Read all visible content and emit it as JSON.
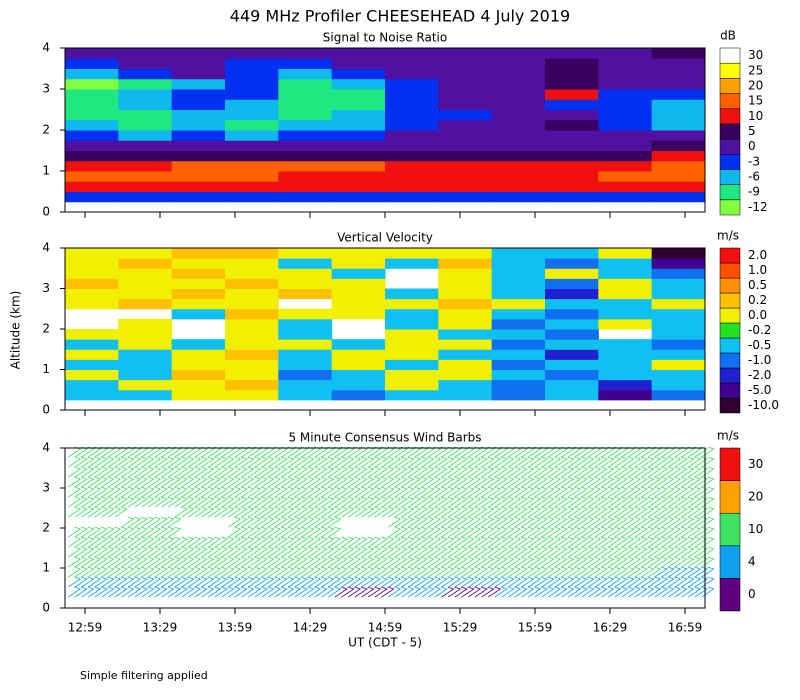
{
  "title": "449 MHz Profiler CHEESEHEAD  4 July 2019",
  "y_label": "Altitude (km)",
  "x_label": "UT  (CDT - 5)",
  "footnote": "Simple filtering applied",
  "chart_data": [
    {
      "type": "heatmap",
      "title": "Signal to Noise Ratio",
      "unit": "dB",
      "ylim": [
        0,
        4
      ],
      "yticks": [
        0,
        1,
        2,
        3,
        4
      ],
      "ybins": [
        0.25,
        0.5,
        0.75,
        1.0,
        1.25,
        1.5,
        1.75,
        2.0,
        2.25,
        2.5,
        2.75,
        3.0,
        3.25,
        3.5,
        3.75,
        4.0
      ],
      "levels": [
        -12,
        -9,
        -6,
        -3,
        0,
        5,
        10,
        15,
        20,
        25,
        30
      ],
      "colors": [
        "#80ff40",
        "#20e880",
        "#10b8f0",
        "#0030f0",
        "#5010a0",
        "#3a0060",
        "#f01010",
        "#ff6000",
        "#ffa000",
        "#ffff00",
        "#ffffff"
      ],
      "z": [
        [
          -3,
          -3,
          -3,
          -3,
          -3,
          -3,
          -3,
          -3,
          -3,
          -3,
          -3,
          -3
        ],
        [
          10,
          10,
          10,
          10,
          10,
          10,
          10,
          10,
          10,
          10,
          10,
          10
        ],
        [
          15,
          15,
          15,
          15,
          12,
          12,
          12,
          12,
          12,
          12,
          15,
          15
        ],
        [
          10,
          10,
          15,
          15,
          15,
          15,
          10,
          10,
          10,
          10,
          10,
          15
        ],
        [
          5,
          5,
          5,
          5,
          5,
          5,
          5,
          5,
          5,
          5,
          5,
          10
        ],
        [
          0,
          0,
          0,
          0,
          0,
          0,
          0,
          0,
          0,
          0,
          0,
          5
        ],
        [
          -3,
          -6,
          -3,
          -6,
          -3,
          -3,
          0,
          0,
          0,
          0,
          0,
          0
        ],
        [
          -6,
          -9,
          -6,
          -9,
          -6,
          -6,
          -3,
          0,
          0,
          5,
          -3,
          -6
        ],
        [
          -9,
          -9,
          -6,
          -6,
          -9,
          -6,
          -3,
          -3,
          0,
          0,
          -3,
          -6
        ],
        [
          -9,
          -6,
          -3,
          -6,
          -9,
          -9,
          -3,
          0,
          0,
          -3,
          -3,
          -6
        ],
        [
          -9,
          -6,
          -3,
          -3,
          -9,
          -9,
          -3,
          0,
          0,
          10,
          -3,
          -3
        ],
        [
          -12,
          -9,
          -6,
          -3,
          -9,
          -6,
          -3,
          0,
          0,
          5,
          0,
          0
        ],
        [
          -6,
          -3,
          0,
          -3,
          -6,
          -3,
          0,
          0,
          0,
          5,
          0,
          0
        ],
        [
          -3,
          0,
          0,
          -3,
          -3,
          0,
          0,
          0,
          0,
          5,
          0,
          0
        ],
        [
          0,
          0,
          0,
          0,
          0,
          0,
          0,
          0,
          0,
          0,
          0,
          5
        ]
      ]
    },
    {
      "type": "heatmap",
      "title": "Vertical Velocity",
      "unit": "m/s",
      "ylim": [
        0,
        4
      ],
      "yticks": [
        0,
        1,
        2,
        3,
        4
      ],
      "ybins": [
        0.25,
        0.5,
        0.75,
        1.0,
        1.25,
        1.5,
        1.75,
        2.0,
        2.25,
        2.5,
        2.75,
        3.0,
        3.25,
        3.5,
        3.75,
        4.0
      ],
      "levels": [
        {
          "value": -10,
          "label": "-10.0"
        },
        {
          "value": -5,
          "label": "-5.0"
        },
        {
          "value": -2,
          "label": "-2.0"
        },
        {
          "value": -1,
          "label": "-1.0"
        },
        -0.5,
        -0.2,
        {
          "value": 0,
          "label": "0.0"
        },
        0.2,
        0.5,
        {
          "value": 1,
          "label": "1.0"
        },
        {
          "value": 2,
          "label": "2.0"
        }
      ],
      "colors": [
        "#300030",
        "#400090",
        "#2020d0",
        "#1070f0",
        "#10c0f0",
        "#20e020",
        "#f0f000",
        "#ffc000",
        "#ff9000",
        "#ff5000",
        "#f01010"
      ],
      "z": [
        [
          -0.3,
          -0.3,
          0.1,
          0.1,
          -0.3,
          -0.6,
          -0.3,
          -0.3,
          -0.6,
          -0.3,
          -3,
          -0.6
        ],
        [
          -0.3,
          0.1,
          0.1,
          0.3,
          -0.3,
          -0.3,
          0.1,
          -0.3,
          -0.6,
          -0.3,
          -1.2,
          -0.3
        ],
        [
          0.1,
          -0.3,
          0.3,
          0.1,
          -0.6,
          -0.3,
          0.1,
          0.1,
          -0.3,
          -0.6,
          -0.3,
          -0.3
        ],
        [
          -0.3,
          -0.3,
          0.1,
          0.1,
          -0.3,
          0.1,
          -0.3,
          0.1,
          -0.6,
          -0.3,
          -0.3,
          0.1
        ],
        [
          0.1,
          -0.3,
          0.1,
          0.3,
          -0.3,
          0.1,
          0.1,
          -0.3,
          -0.3,
          -1.2,
          -0.3,
          -0.3
        ],
        [
          -0.3,
          0.1,
          -0.3,
          0.1,
          0.1,
          -0.3,
          0.1,
          0.1,
          -0.6,
          -0.3,
          -0.3,
          -0.6
        ],
        [
          0.1,
          0.1,
          null,
          0.1,
          -0.3,
          null,
          0.1,
          -0.3,
          -0.3,
          -0.6,
          null,
          -0.3
        ],
        [
          null,
          0.1,
          null,
          0.1,
          -0.3,
          null,
          -0.3,
          0.1,
          -0.6,
          -0.3,
          0.1,
          -0.3
        ],
        [
          null,
          null,
          -0.3,
          0.3,
          0.1,
          0.1,
          -0.3,
          0.1,
          -0.3,
          -0.6,
          -0.3,
          -0.3
        ],
        [
          0.1,
          0.3,
          0.1,
          0.1,
          null,
          0.1,
          0.1,
          0.3,
          0.1,
          -0.3,
          -0.3,
          0.1
        ],
        [
          0.1,
          0.1,
          0.3,
          0.1,
          0.3,
          0.1,
          -0.3,
          0.1,
          -0.3,
          -1.2,
          0.1,
          -0.3
        ],
        [
          0.3,
          0.1,
          0.1,
          0.3,
          0.1,
          0.1,
          null,
          0.1,
          -0.3,
          -0.6,
          0.1,
          -0.3
        ],
        [
          0.1,
          0.1,
          0.3,
          0.1,
          0.1,
          -0.3,
          null,
          0.1,
          -0.3,
          0.1,
          -0.3,
          -0.6
        ],
        [
          0.1,
          0.3,
          0.1,
          0.1,
          -0.3,
          0.1,
          -0.3,
          0.3,
          -0.3,
          -0.6,
          -0.3,
          -3
        ],
        [
          0.1,
          0.1,
          0.3,
          0.3,
          0.1,
          0.1,
          0.1,
          0.1,
          -0.3,
          -0.3,
          0.1,
          -6
        ]
      ]
    },
    {
      "type": "barbs",
      "title": "5 Minute Consensus Wind Barbs",
      "unit": "m/s",
      "ylim": [
        0,
        4
      ],
      "yticks": [
        0,
        1,
        2,
        3,
        4
      ],
      "ybins": [
        0.25,
        0.5,
        0.75,
        1.0,
        1.25,
        1.5,
        1.75,
        2.0,
        2.25,
        2.5,
        2.75,
        3.0,
        3.25,
        3.5,
        3.75,
        4.0
      ],
      "levels": [
        0,
        4,
        10,
        20,
        30
      ],
      "colors": [
        "#600080",
        "#10a0f0",
        "#40e060",
        "#ffa000",
        "#f01010"
      ],
      "xticks": [
        "12:59",
        "13:29",
        "13:59",
        "14:29",
        "14:59",
        "15:29",
        "15:59",
        "16:29",
        "16:59"
      ],
      "z": [
        [
          5,
          5,
          5,
          5,
          4,
          3,
          5,
          3,
          5,
          6,
          6,
          8
        ],
        [
          6,
          6,
          6,
          6,
          5,
          5,
          6,
          5,
          6,
          6,
          7,
          8
        ],
        [
          10,
          10,
          10,
          11,
          10,
          10,
          10,
          10,
          11,
          11,
          10,
          9
        ],
        [
          10,
          11,
          11,
          11,
          10,
          10,
          11,
          11,
          11,
          11,
          10,
          10
        ],
        [
          11,
          11,
          11,
          11,
          11,
          11,
          11,
          11,
          11,
          11,
          11,
          10
        ],
        [
          11,
          11,
          11,
          12,
          11,
          11,
          11,
          11,
          11,
          11,
          11,
          11
        ],
        [
          11,
          11,
          null,
          11,
          11,
          null,
          11,
          11,
          11,
          11,
          11,
          11
        ],
        [
          null,
          11,
          null,
          11,
          11,
          null,
          11,
          11,
          11,
          11,
          11,
          10
        ],
        [
          11,
          null,
          11,
          11,
          11,
          11,
          11,
          12,
          11,
          11,
          11,
          11
        ],
        [
          12,
          12,
          12,
          12,
          12,
          12,
          12,
          12,
          12,
          11,
          11,
          11
        ],
        [
          12,
          12,
          12,
          12,
          12,
          12,
          12,
          12,
          12,
          12,
          12,
          12
        ],
        [
          13,
          13,
          13,
          13,
          13,
          13,
          13,
          13,
          13,
          12,
          12,
          12
        ],
        [
          14,
          14,
          13,
          13,
          13,
          13,
          13,
          13,
          13,
          13,
          12,
          12
        ],
        [
          14,
          14,
          14,
          14,
          13,
          13,
          13,
          13,
          13,
          13,
          13,
          12
        ],
        [
          14,
          14,
          14,
          14,
          14,
          14,
          13,
          13,
          13,
          13,
          13,
          13
        ]
      ]
    }
  ]
}
